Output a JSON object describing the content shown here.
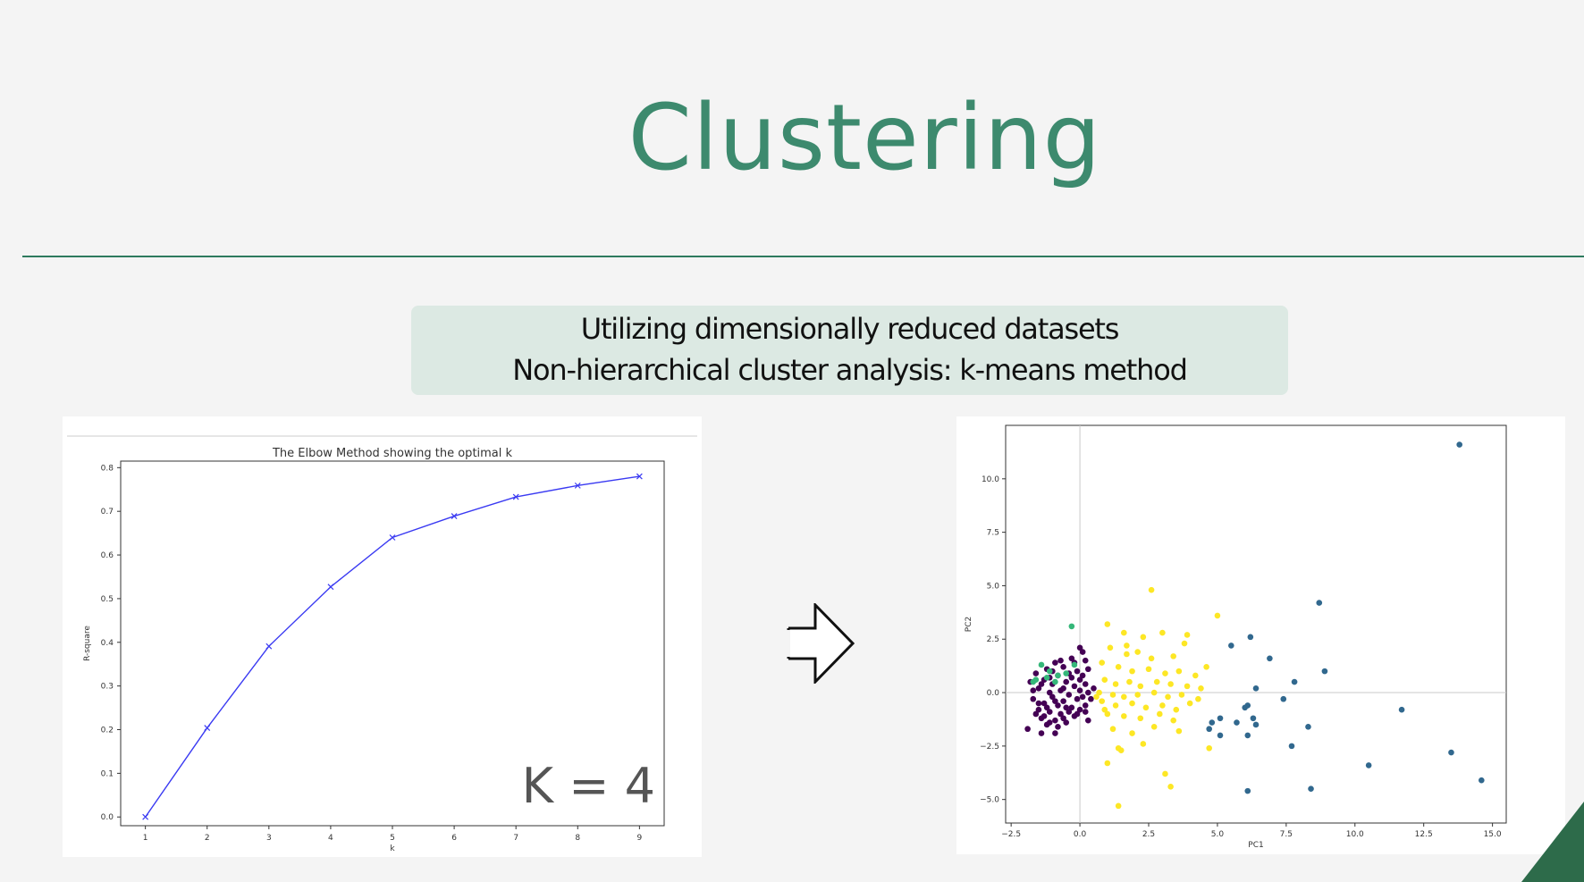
{
  "slide": {
    "title": "Clustering",
    "subtitle_lines": [
      "Utilizing dimensionally reduced datasets",
      "Non-hierarchical cluster analysis: k-means method"
    ],
    "k_annotation": "K = 4",
    "accent_color": "#3d8a6e",
    "rule_color": "#2e7a5e",
    "corner_color": "#2d6b4a"
  },
  "chart_data": [
    {
      "type": "line",
      "title": "The Elbow Method showing the optimal k",
      "xlabel": "k",
      "ylabel": "R-square",
      "x": [
        1,
        2,
        3,
        4,
        5,
        6,
        7,
        8,
        9
      ],
      "y": [
        0.0,
        0.204,
        0.391,
        0.527,
        0.64,
        0.689,
        0.733,
        0.759,
        0.78
      ],
      "xlim": [
        0.6,
        9.4
      ],
      "ylim": [
        -0.02,
        0.815
      ],
      "xticks": [
        1,
        2,
        3,
        4,
        5,
        6,
        7,
        8,
        9
      ],
      "yticks": [
        0.0,
        0.1,
        0.2,
        0.3,
        0.4,
        0.5,
        0.6,
        0.7,
        0.8
      ],
      "marker": "x",
      "color": "#3a3af2",
      "grid": false
    },
    {
      "type": "scatter",
      "title": "",
      "xlabel": "PC1",
      "ylabel": "PC2",
      "xlim": [
        -2.7,
        15.5
      ],
      "ylim": [
        -6.1,
        12.5
      ],
      "xticks": [
        -2.5,
        0.0,
        2.5,
        5.0,
        7.5,
        10.0,
        12.5,
        15.0
      ],
      "yticks": [
        -5.0,
        -2.5,
        0.0,
        2.5,
        5.0,
        7.5,
        10.0
      ],
      "tick_labels_x": [
        "−2.5",
        "0.0",
        "2.5",
        "5.0",
        "7.5",
        "10.0",
        "12.5",
        "15.0"
      ],
      "tick_labels_y": [
        "−5.0",
        "−2.5",
        "0.0",
        "2.5",
        "5.0",
        "7.5",
        "10.0"
      ],
      "reference_lines": {
        "x": 0.0,
        "y": 0.0
      },
      "grid": false,
      "clusters": [
        {
          "color": "#440154",
          "points": [
            [
              -1.8,
              0.5
            ],
            [
              -1.7,
              -0.3
            ],
            [
              -1.6,
              0.9
            ],
            [
              -1.5,
              -0.8
            ],
            [
              -1.5,
              0.2
            ],
            [
              -1.4,
              -1.2
            ],
            [
              -1.3,
              0.6
            ],
            [
              -1.3,
              -0.5
            ],
            [
              -1.2,
              1.1
            ],
            [
              -1.2,
              -1.5
            ],
            [
              -1.1,
              0.0
            ],
            [
              -1.1,
              -0.9
            ],
            [
              -1.0,
              0.4
            ],
            [
              -1.0,
              -0.2
            ],
            [
              -0.9,
              1.4
            ],
            [
              -0.9,
              -1.3
            ],
            [
              -0.8,
              0.8
            ],
            [
              -0.8,
              -0.6
            ],
            [
              -0.7,
              0.1
            ],
            [
              -0.7,
              -1.0
            ],
            [
              -0.6,
              1.2
            ],
            [
              -0.6,
              -0.4
            ],
            [
              -0.5,
              0.5
            ],
            [
              -0.5,
              -1.4
            ],
            [
              -0.4,
              0.9
            ],
            [
              -0.4,
              -0.1
            ],
            [
              -0.3,
              1.6
            ],
            [
              -0.3,
              -0.7
            ],
            [
              -0.2,
              0.3
            ],
            [
              -0.2,
              -1.1
            ],
            [
              -0.1,
              1.0
            ],
            [
              -0.1,
              -0.3
            ],
            [
              0.0,
              0.6
            ],
            [
              0.0,
              -0.8
            ],
            [
              0.1,
              1.9
            ],
            [
              0.1,
              -0.2
            ],
            [
              0.2,
              0.4
            ],
            [
              0.2,
              -0.6
            ],
            [
              0.3,
              1.1
            ],
            [
              0.3,
              0.0
            ],
            [
              -1.6,
              -1.0
            ],
            [
              -1.4,
              0.4
            ],
            [
              -1.2,
              -0.7
            ],
            [
              -1.0,
              1.0
            ],
            [
              -0.8,
              -1.6
            ],
            [
              -0.6,
              0.2
            ],
            [
              -0.4,
              -0.9
            ],
            [
              -0.2,
              1.4
            ],
            [
              0.0,
              0.1
            ],
            [
              0.2,
              -0.9
            ],
            [
              -1.7,
              0.1
            ],
            [
              -1.5,
              -0.5
            ],
            [
              -1.3,
              -1.1
            ],
            [
              -1.1,
              0.7
            ],
            [
              -0.9,
              -0.4
            ],
            [
              -0.7,
              1.5
            ],
            [
              -0.5,
              -0.7
            ],
            [
              -0.3,
              0.7
            ],
            [
              -0.1,
              -1.0
            ],
            [
              0.1,
              0.8
            ],
            [
              -0.9,
              -1.9
            ],
            [
              -1.9,
              -1.7
            ],
            [
              -1.4,
              -1.9
            ],
            [
              0.0,
              2.1
            ],
            [
              0.2,
              1.5
            ],
            [
              0.4,
              -0.3
            ],
            [
              0.5,
              0.2
            ],
            [
              -0.6,
              -1.2
            ],
            [
              -1.1,
              -1.4
            ],
            [
              0.3,
              -1.3
            ]
          ]
        },
        {
          "color": "#31688e",
          "points": [
            [
              13.8,
              11.6
            ],
            [
              8.7,
              4.2
            ],
            [
              6.2,
              2.6
            ],
            [
              5.5,
              2.2
            ],
            [
              6.9,
              1.6
            ],
            [
              8.9,
              1.0
            ],
            [
              7.8,
              0.5
            ],
            [
              6.4,
              0.2
            ],
            [
              7.4,
              -0.3
            ],
            [
              6.1,
              -0.6
            ],
            [
              6.0,
              -0.7
            ],
            [
              4.8,
              -1.4
            ],
            [
              5.1,
              -1.2
            ],
            [
              5.7,
              -1.4
            ],
            [
              6.3,
              -1.2
            ],
            [
              6.4,
              -1.5
            ],
            [
              4.7,
              -1.7
            ],
            [
              5.1,
              -2.0
            ],
            [
              6.1,
              -2.0
            ],
            [
              8.3,
              -1.6
            ],
            [
              7.7,
              -2.5
            ],
            [
              11.7,
              -0.8
            ],
            [
              10.5,
              -3.4
            ],
            [
              13.5,
              -2.8
            ],
            [
              14.6,
              -4.1
            ],
            [
              6.1,
              -4.6
            ],
            [
              8.4,
              -4.5
            ]
          ]
        },
        {
          "color": "#35b779",
          "points": [
            [
              -1.4,
              1.3
            ],
            [
              -1.1,
              1.0
            ],
            [
              -0.8,
              0.8
            ],
            [
              -1.6,
              0.6
            ],
            [
              -0.5,
              0.9
            ],
            [
              -0.2,
              1.3
            ],
            [
              -1.7,
              0.5
            ],
            [
              -0.3,
              3.1
            ],
            [
              -0.9,
              0.5
            ],
            [
              -1.2,
              0.7
            ]
          ]
        },
        {
          "color": "#fde725",
          "points": [
            [
              2.6,
              4.8
            ],
            [
              5.0,
              3.6
            ],
            [
              3.0,
              2.8
            ],
            [
              1.6,
              2.8
            ],
            [
              2.3,
              2.6
            ],
            [
              1.1,
              2.1
            ],
            [
              3.8,
              2.3
            ],
            [
              2.1,
              1.9
            ],
            [
              1.7,
              1.8
            ],
            [
              2.6,
              1.6
            ],
            [
              3.4,
              1.7
            ],
            [
              0.8,
              1.4
            ],
            [
              1.4,
              1.2
            ],
            [
              1.9,
              1.0
            ],
            [
              2.5,
              1.1
            ],
            [
              3.1,
              0.9
            ],
            [
              3.6,
              1.0
            ],
            [
              4.2,
              0.8
            ],
            [
              0.9,
              0.6
            ],
            [
              1.3,
              0.4
            ],
            [
              1.8,
              0.5
            ],
            [
              2.2,
              0.3
            ],
            [
              2.8,
              0.5
            ],
            [
              3.3,
              0.4
            ],
            [
              3.9,
              0.3
            ],
            [
              4.4,
              0.2
            ],
            [
              0.7,
              0.0
            ],
            [
              1.2,
              -0.1
            ],
            [
              1.6,
              -0.2
            ],
            [
              2.1,
              -0.1
            ],
            [
              2.7,
              0.0
            ],
            [
              3.2,
              -0.2
            ],
            [
              3.7,
              -0.1
            ],
            [
              4.3,
              -0.3
            ],
            [
              0.8,
              -0.4
            ],
            [
              1.3,
              -0.6
            ],
            [
              1.9,
              -0.5
            ],
            [
              2.4,
              -0.7
            ],
            [
              3.0,
              -0.6
            ],
            [
              3.5,
              -0.8
            ],
            [
              4.0,
              -0.5
            ],
            [
              1.0,
              -1.0
            ],
            [
              1.6,
              -1.1
            ],
            [
              2.2,
              -1.2
            ],
            [
              2.9,
              -1.0
            ],
            [
              3.4,
              -1.3
            ],
            [
              1.2,
              -1.7
            ],
            [
              1.9,
              -1.9
            ],
            [
              2.7,
              -1.6
            ],
            [
              3.6,
              -1.8
            ],
            [
              1.4,
              -2.6
            ],
            [
              2.3,
              -2.4
            ],
            [
              3.1,
              -3.8
            ],
            [
              3.3,
              -4.4
            ],
            [
              1.4,
              -5.3
            ],
            [
              4.7,
              -2.6
            ],
            [
              1.0,
              -3.3
            ],
            [
              1.5,
              -2.7
            ],
            [
              0.6,
              -0.2
            ],
            [
              4.6,
              1.2
            ],
            [
              1.0,
              3.2
            ],
            [
              1.7,
              2.2
            ],
            [
              3.9,
              2.7
            ],
            [
              0.9,
              -0.8
            ]
          ]
        }
      ]
    }
  ]
}
